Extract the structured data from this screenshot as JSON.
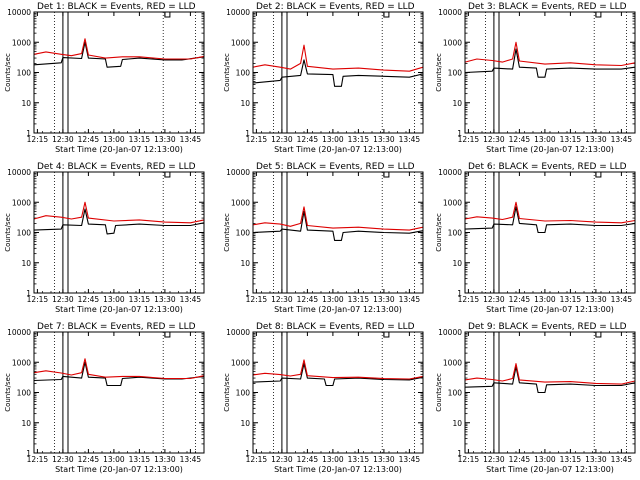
{
  "window": {
    "width": 640,
    "height": 480
  },
  "colors": {
    "background": "#ffffff",
    "events": "#000000",
    "lld": "#dd0000",
    "axes": "#000000"
  },
  "chart_data": [
    {
      "type": "line",
      "title": "Det 1: BLACK = Events, RED = LLD",
      "xlabel": "Start Time (20-Jan-07 12:13:00)",
      "ylabel": "Counts/sec",
      "yscale": "log",
      "ylim": [
        1,
        10000
      ],
      "xlim": [
        "12:13",
        "13:53"
      ],
      "xticks": [
        "12:15",
        "12:30",
        "12:45",
        "13:00",
        "13:15",
        "13:30",
        "13:45"
      ],
      "yticks": [
        "1",
        "10",
        "100",
        "1000",
        "10000"
      ],
      "series": [
        {
          "name": "Events",
          "color": "#000000",
          "x": [
            "12:13",
            "12:29",
            "12:30",
            "12:41",
            "12:43",
            "12:45",
            "12:55",
            "12:56",
            "13:04",
            "13:05",
            "13:15",
            "13:30",
            "13:40",
            "13:53"
          ],
          "y": [
            180,
            210,
            310,
            290,
            1000,
            300,
            280,
            150,
            160,
            270,
            300,
            260,
            260,
            330
          ]
        },
        {
          "name": "LLD",
          "color": "#dd0000",
          "x": [
            "12:13",
            "12:20",
            "12:29",
            "12:35",
            "12:41",
            "12:43",
            "12:45",
            "12:55",
            "13:05",
            "13:15",
            "13:30",
            "13:45",
            "13:53"
          ],
          "y": [
            400,
            480,
            400,
            360,
            420,
            1300,
            380,
            300,
            330,
            330,
            280,
            280,
            340
          ]
        }
      ]
    },
    {
      "type": "line",
      "title": "Det 2: BLACK = Events, RED = LLD",
      "xlabel": "Start Time (20-Jan-07 12:13:00)",
      "ylabel": "Counts/sec",
      "yscale": "log",
      "ylim": [
        1,
        10000
      ],
      "xlim": [
        "12:13",
        "13:53"
      ],
      "xticks": [
        "12:15",
        "12:30",
        "12:45",
        "13:00",
        "13:15",
        "13:30",
        "13:45"
      ],
      "yticks": [
        "1",
        "10",
        "100",
        "1000",
        "10000"
      ],
      "series": [
        {
          "name": "Events",
          "color": "#000000",
          "x": [
            "12:13",
            "12:29",
            "12:30",
            "12:41",
            "12:43",
            "12:45",
            "13:00",
            "13:01",
            "13:05",
            "13:06",
            "13:15",
            "13:30",
            "13:45",
            "13:53"
          ],
          "y": [
            45,
            55,
            70,
            80,
            260,
            90,
            85,
            35,
            35,
            75,
            80,
            75,
            70,
            90
          ]
        },
        {
          "name": "LLD",
          "color": "#dd0000",
          "x": [
            "12:13",
            "12:20",
            "12:29",
            "12:35",
            "12:41",
            "12:43",
            "12:45",
            "13:00",
            "13:15",
            "13:30",
            "13:45",
            "13:53"
          ],
          "y": [
            150,
            180,
            150,
            130,
            200,
            800,
            160,
            130,
            140,
            120,
            110,
            150
          ]
        }
      ]
    },
    {
      "type": "line",
      "title": "Det 3: BLACK = Events, RED = LLD",
      "xlabel": "Start Time (20-Jan-07 12:13:00)",
      "ylabel": "Counts/sec",
      "yscale": "log",
      "ylim": [
        1,
        10000
      ],
      "xlim": [
        "12:13",
        "13:53"
      ],
      "xticks": [
        "12:15",
        "12:30",
        "12:45",
        "13:00",
        "13:15",
        "13:30",
        "13:45"
      ],
      "yticks": [
        "1",
        "10",
        "100",
        "1000",
        "10000"
      ],
      "series": [
        {
          "name": "Events",
          "color": "#000000",
          "x": [
            "12:13",
            "12:29",
            "12:30",
            "12:41",
            "12:43",
            "12:45",
            "12:55",
            "12:56",
            "13:00",
            "13:01",
            "13:15",
            "13:30",
            "13:45",
            "13:53"
          ],
          "y": [
            100,
            110,
            140,
            130,
            600,
            150,
            140,
            70,
            70,
            130,
            140,
            130,
            130,
            150
          ]
        },
        {
          "name": "LLD",
          "color": "#dd0000",
          "x": [
            "12:13",
            "12:20",
            "12:29",
            "12:35",
            "12:41",
            "12:43",
            "12:45",
            "13:00",
            "13:15",
            "13:30",
            "13:45",
            "13:53"
          ],
          "y": [
            220,
            280,
            250,
            220,
            280,
            1000,
            240,
            190,
            210,
            180,
            170,
            210
          ]
        }
      ]
    },
    {
      "type": "line",
      "title": "Det 4: BLACK = Events, RED = LLD",
      "xlabel": "Start Time (20-Jan-07 12:13:00)",
      "ylabel": "Counts/sec",
      "yscale": "log",
      "ylim": [
        1,
        10000
      ],
      "xlim": [
        "12:13",
        "13:53"
      ],
      "xticks": [
        "12:15",
        "12:30",
        "12:45",
        "13:00",
        "13:15",
        "13:30",
        "13:45"
      ],
      "yticks": [
        "1",
        "10",
        "100",
        "1000",
        "10000"
      ],
      "series": [
        {
          "name": "Events",
          "color": "#000000",
          "x": [
            "12:13",
            "12:29",
            "12:30",
            "12:41",
            "12:43",
            "12:45",
            "12:55",
            "12:56",
            "13:00",
            "13:01",
            "13:15",
            "13:30",
            "13:45",
            "13:53"
          ],
          "y": [
            120,
            130,
            180,
            170,
            600,
            190,
            180,
            90,
            95,
            170,
            190,
            170,
            170,
            210
          ]
        },
        {
          "name": "LLD",
          "color": "#dd0000",
          "x": [
            "12:13",
            "12:20",
            "12:29",
            "12:35",
            "12:41",
            "12:43",
            "12:45",
            "13:00",
            "13:15",
            "13:30",
            "13:45",
            "13:53"
          ],
          "y": [
            280,
            360,
            320,
            280,
            320,
            1000,
            300,
            240,
            260,
            220,
            210,
            260
          ]
        }
      ]
    },
    {
      "type": "line",
      "title": "Det 5: BLACK = Events, RED = LLD",
      "xlabel": "Start Time (20-Jan-07 12:13:00)",
      "ylabel": "Counts/sec",
      "yscale": "log",
      "ylim": [
        1,
        10000
      ],
      "xlim": [
        "12:13",
        "13:53"
      ],
      "xticks": [
        "12:15",
        "12:30",
        "12:45",
        "13:00",
        "13:15",
        "13:30",
        "13:45"
      ],
      "yticks": [
        "1",
        "10",
        "100",
        "1000",
        "10000"
      ],
      "series": [
        {
          "name": "Events",
          "color": "#000000",
          "x": [
            "12:13",
            "12:29",
            "12:30",
            "12:41",
            "12:43",
            "12:45",
            "13:00",
            "13:01",
            "13:05",
            "13:06",
            "13:15",
            "13:30",
            "13:45",
            "13:53"
          ],
          "y": [
            100,
            110,
            130,
            110,
            500,
            120,
            110,
            55,
            55,
            100,
            110,
            100,
            95,
            115
          ]
        },
        {
          "name": "LLD",
          "color": "#dd0000",
          "x": [
            "12:13",
            "12:20",
            "12:29",
            "12:35",
            "12:41",
            "12:43",
            "12:45",
            "13:00",
            "13:15",
            "13:30",
            "13:45",
            "13:53"
          ],
          "y": [
            180,
            210,
            190,
            160,
            200,
            700,
            170,
            140,
            150,
            130,
            120,
            150
          ]
        }
      ]
    },
    {
      "type": "line",
      "title": "Det 6: BLACK = Events, RED = LLD",
      "xlabel": "Start Time (20-Jan-07 12:13:00)",
      "ylabel": "Counts/sec",
      "yscale": "log",
      "ylim": [
        1,
        10000
      ],
      "xlim": [
        "12:13",
        "13:53"
      ],
      "xticks": [
        "12:15",
        "12:30",
        "12:45",
        "13:00",
        "13:15",
        "13:30",
        "13:45"
      ],
      "yticks": [
        "1",
        "10",
        "100",
        "1000",
        "10000"
      ],
      "series": [
        {
          "name": "Events",
          "color": "#000000",
          "x": [
            "12:13",
            "12:29",
            "12:30",
            "12:41",
            "12:43",
            "12:45",
            "12:55",
            "12:56",
            "13:00",
            "13:01",
            "13:15",
            "13:30",
            "13:45",
            "13:53"
          ],
          "y": [
            130,
            140,
            190,
            180,
            700,
            200,
            180,
            100,
            100,
            180,
            190,
            170,
            170,
            200
          ]
        },
        {
          "name": "LLD",
          "color": "#dd0000",
          "x": [
            "12:13",
            "12:20",
            "12:29",
            "12:35",
            "12:41",
            "12:43",
            "12:45",
            "13:00",
            "13:15",
            "13:30",
            "13:45",
            "13:53"
          ],
          "y": [
            280,
            330,
            300,
            270,
            320,
            1000,
            290,
            240,
            250,
            220,
            210,
            250
          ]
        }
      ]
    },
    {
      "type": "line",
      "title": "Det 7: BLACK = Events, RED = LLD",
      "xlabel": "Start Time (20-Jan-07 12:13:00)",
      "ylabel": "Counts/sec",
      "yscale": "log",
      "ylim": [
        1,
        10000
      ],
      "xlim": [
        "12:13",
        "13:53"
      ],
      "xticks": [
        "12:15",
        "12:30",
        "12:45",
        "13:00",
        "13:15",
        "13:30",
        "13:45"
      ],
      "yticks": [
        "1",
        "10",
        "100",
        "1000",
        "10000"
      ],
      "series": [
        {
          "name": "Events",
          "color": "#000000",
          "x": [
            "12:13",
            "12:29",
            "12:30",
            "12:41",
            "12:43",
            "12:45",
            "12:55",
            "12:56",
            "13:04",
            "13:05",
            "13:15",
            "13:30",
            "13:40",
            "13:53"
          ],
          "y": [
            250,
            270,
            340,
            300,
            1000,
            320,
            300,
            170,
            170,
            290,
            320,
            280,
            280,
            340
          ]
        },
        {
          "name": "LLD",
          "color": "#dd0000",
          "x": [
            "12:13",
            "12:20",
            "12:29",
            "12:35",
            "12:41",
            "12:43",
            "12:45",
            "12:55",
            "13:05",
            "13:15",
            "13:30",
            "13:45",
            "13:53"
          ],
          "y": [
            450,
            520,
            440,
            380,
            450,
            1300,
            400,
            320,
            340,
            340,
            290,
            290,
            360
          ]
        }
      ]
    },
    {
      "type": "line",
      "title": "Det 8: BLACK = Events, RED = LLD",
      "xlabel": "Start Time (20-Jan-07 12:13:00)",
      "ylabel": "Counts/sec",
      "yscale": "log",
      "ylim": [
        1,
        10000
      ],
      "xlim": [
        "12:13",
        "13:53"
      ],
      "xticks": [
        "12:15",
        "12:30",
        "12:45",
        "13:00",
        "13:15",
        "13:30",
        "13:45"
      ],
      "yticks": [
        "1",
        "10",
        "100",
        "1000",
        "10000"
      ],
      "series": [
        {
          "name": "Events",
          "color": "#000000",
          "x": [
            "12:13",
            "12:29",
            "12:30",
            "12:41",
            "12:43",
            "12:45",
            "12:55",
            "12:56",
            "13:00",
            "13:01",
            "13:15",
            "13:30",
            "13:45",
            "13:53"
          ],
          "y": [
            220,
            240,
            300,
            280,
            900,
            300,
            280,
            170,
            170,
            280,
            300,
            270,
            260,
            320
          ]
        },
        {
          "name": "LLD",
          "color": "#dd0000",
          "x": [
            "12:13",
            "12:20",
            "12:29",
            "12:35",
            "12:41",
            "12:43",
            "12:45",
            "13:00",
            "13:15",
            "13:30",
            "13:45",
            "13:53"
          ],
          "y": [
            380,
            430,
            390,
            350,
            400,
            1200,
            360,
            310,
            320,
            290,
            280,
            340
          ]
        }
      ]
    },
    {
      "type": "line",
      "title": "Det 9: BLACK = Events, RED = LLD",
      "xlabel": "Start Time (20-Jan-07 12:13:00)",
      "ylabel": "Counts/sec",
      "yscale": "log",
      "ylim": [
        1,
        10000
      ],
      "xlim": [
        "12:13",
        "13:53"
      ],
      "xticks": [
        "12:15",
        "12:30",
        "12:45",
        "13:00",
        "13:15",
        "13:30",
        "13:45"
      ],
      "yticks": [
        "1",
        "10",
        "100",
        "1000",
        "10000"
      ],
      "series": [
        {
          "name": "Events",
          "color": "#000000",
          "x": [
            "12:13",
            "12:29",
            "12:30",
            "12:41",
            "12:43",
            "12:45",
            "12:55",
            "12:56",
            "13:00",
            "13:01",
            "13:15",
            "13:30",
            "13:45",
            "13:53"
          ],
          "y": [
            150,
            160,
            210,
            190,
            700,
            210,
            190,
            100,
            100,
            180,
            190,
            170,
            170,
            210
          ]
        },
        {
          "name": "LLD",
          "color": "#dd0000",
          "x": [
            "12:13",
            "12:20",
            "12:29",
            "12:35",
            "12:41",
            "12:43",
            "12:45",
            "13:00",
            "13:15",
            "13:30",
            "13:45",
            "13:53"
          ],
          "y": [
            260,
            300,
            270,
            240,
            290,
            900,
            260,
            220,
            230,
            200,
            190,
            240
          ]
        }
      ]
    }
  ]
}
